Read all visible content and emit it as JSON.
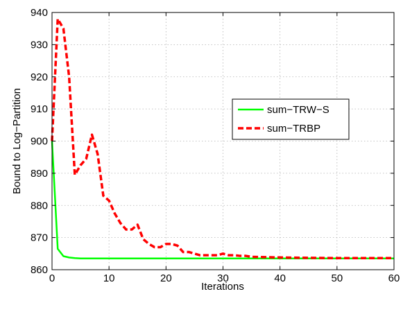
{
  "chart_data": {
    "type": "line",
    "title": "",
    "xlabel": "Iterations",
    "ylabel": "Bound to Log−Partition",
    "xlim": [
      0,
      60
    ],
    "ylim": [
      860,
      940
    ],
    "xticks": [
      0,
      10,
      20,
      30,
      40,
      50,
      60
    ],
    "yticks": [
      860,
      870,
      880,
      890,
      900,
      910,
      920,
      930,
      940
    ],
    "grid": true,
    "legend_position": "center-right",
    "series": [
      {
        "name": "sum−TRW−S",
        "color": "#00ff00",
        "style": "solid",
        "x": [
          0,
          1,
          2,
          3,
          4,
          5,
          6,
          10,
          20,
          30,
          40,
          50,
          60
        ],
        "y": [
          900,
          866.5,
          864.2,
          863.8,
          863.6,
          863.5,
          863.5,
          863.5,
          863.5,
          863.5,
          863.5,
          863.5,
          863.5
        ]
      },
      {
        "name": "sum−TRBP",
        "color": "#ff0000",
        "style": "dashed",
        "x": [
          0,
          1,
          2,
          3,
          4,
          5,
          6,
          7,
          8,
          9,
          10,
          11,
          12,
          13,
          14,
          15,
          16,
          17,
          18,
          19,
          20,
          21,
          22,
          23,
          24,
          25,
          26,
          27,
          28,
          29,
          30,
          31,
          32,
          33,
          34,
          35,
          40,
          45,
          50,
          55,
          60
        ],
        "y": [
          900,
          938,
          935,
          920,
          889.5,
          892.5,
          894.5,
          902,
          896,
          883,
          881.5,
          877.5,
          874.5,
          872.5,
          872.5,
          874,
          869.5,
          868,
          867,
          867,
          868,
          868,
          867.5,
          865.5,
          865.5,
          865,
          864.5,
          864.5,
          864.5,
          864.5,
          865,
          864.5,
          864.5,
          864.3,
          864.3,
          864,
          863.8,
          863.7,
          863.6,
          863.6,
          863.6
        ]
      }
    ]
  }
}
